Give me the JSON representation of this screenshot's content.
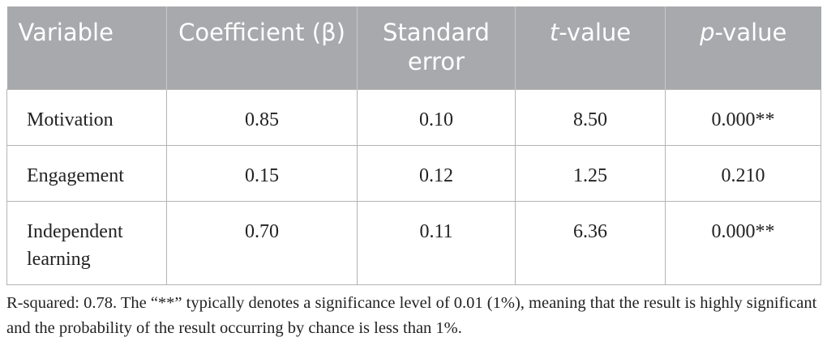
{
  "table": {
    "header": [
      "Variable",
      "Coefficient (β)",
      "Standard error",
      "t-value",
      "p-value"
    ],
    "rows": [
      [
        "Motivation",
        "0.85",
        "0.10",
        "8.50",
        "0.000**"
      ],
      [
        "Engagement",
        "0.15",
        "0.12",
        "1.25",
        "0.210"
      ],
      [
        "Independent learning",
        "0.70",
        "0.11",
        "6.36",
        "0.000**"
      ]
    ]
  },
  "note": "R-squared: 0.78. The “**” typically denotes a significance level of 0.01 (1%), meaning that the result is highly significant and the probability of the result occurring by chance is less than 1%."
}
